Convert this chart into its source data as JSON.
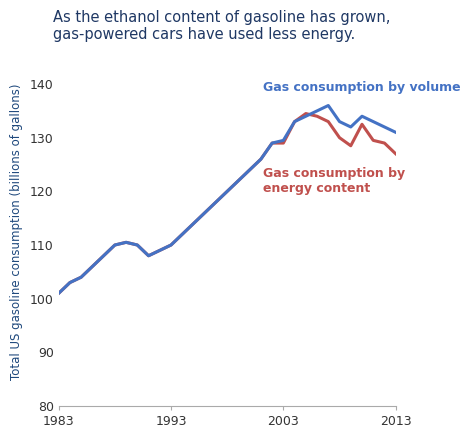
{
  "title_line1": "As the ethanol content of gasoline has grown,",
  "title_line2": "gas-powered cars have used less energy.",
  "ylabel": "Total US gasoline consumption (billions of gallons)",
  "xlim": [
    1983,
    2013
  ],
  "ylim": [
    80,
    145
  ],
  "yticks": [
    80,
    90,
    100,
    110,
    120,
    130,
    140
  ],
  "xticks": [
    1983,
    1993,
    2003,
    2013
  ],
  "volume_color": "#4472C4",
  "energy_color": "#C0504D",
  "ylabel_color": "#1F497D",
  "title_color": "#1F3864",
  "background_color": "#FFFFFF",
  "label_volume": "Gas consumption by volume",
  "label_energy": "Gas consumption by\nenergy content",
  "years": [
    1983,
    1984,
    1985,
    1986,
    1987,
    1988,
    1989,
    1990,
    1991,
    1992,
    1993,
    1994,
    1995,
    1996,
    1997,
    1998,
    1999,
    2000,
    2001,
    2002,
    2003,
    2004,
    2005,
    2006,
    2007,
    2008,
    2009,
    2010,
    2011,
    2012,
    2013
  ],
  "volume": [
    101,
    103,
    104,
    106,
    108,
    110,
    110.5,
    110,
    108,
    109,
    110,
    112,
    114,
    116,
    118,
    120,
    122,
    124,
    126,
    129,
    129.5,
    133,
    134,
    135,
    136,
    133,
    132,
    134,
    133,
    132,
    131
  ],
  "energy": [
    101,
    103,
    104,
    106,
    108,
    110,
    110.5,
    110,
    108,
    109,
    110,
    112,
    114,
    116,
    118,
    120,
    122,
    124,
    126,
    129,
    129,
    133,
    134.5,
    134,
    133,
    130,
    128.5,
    132.5,
    129.5,
    129,
    127
  ]
}
